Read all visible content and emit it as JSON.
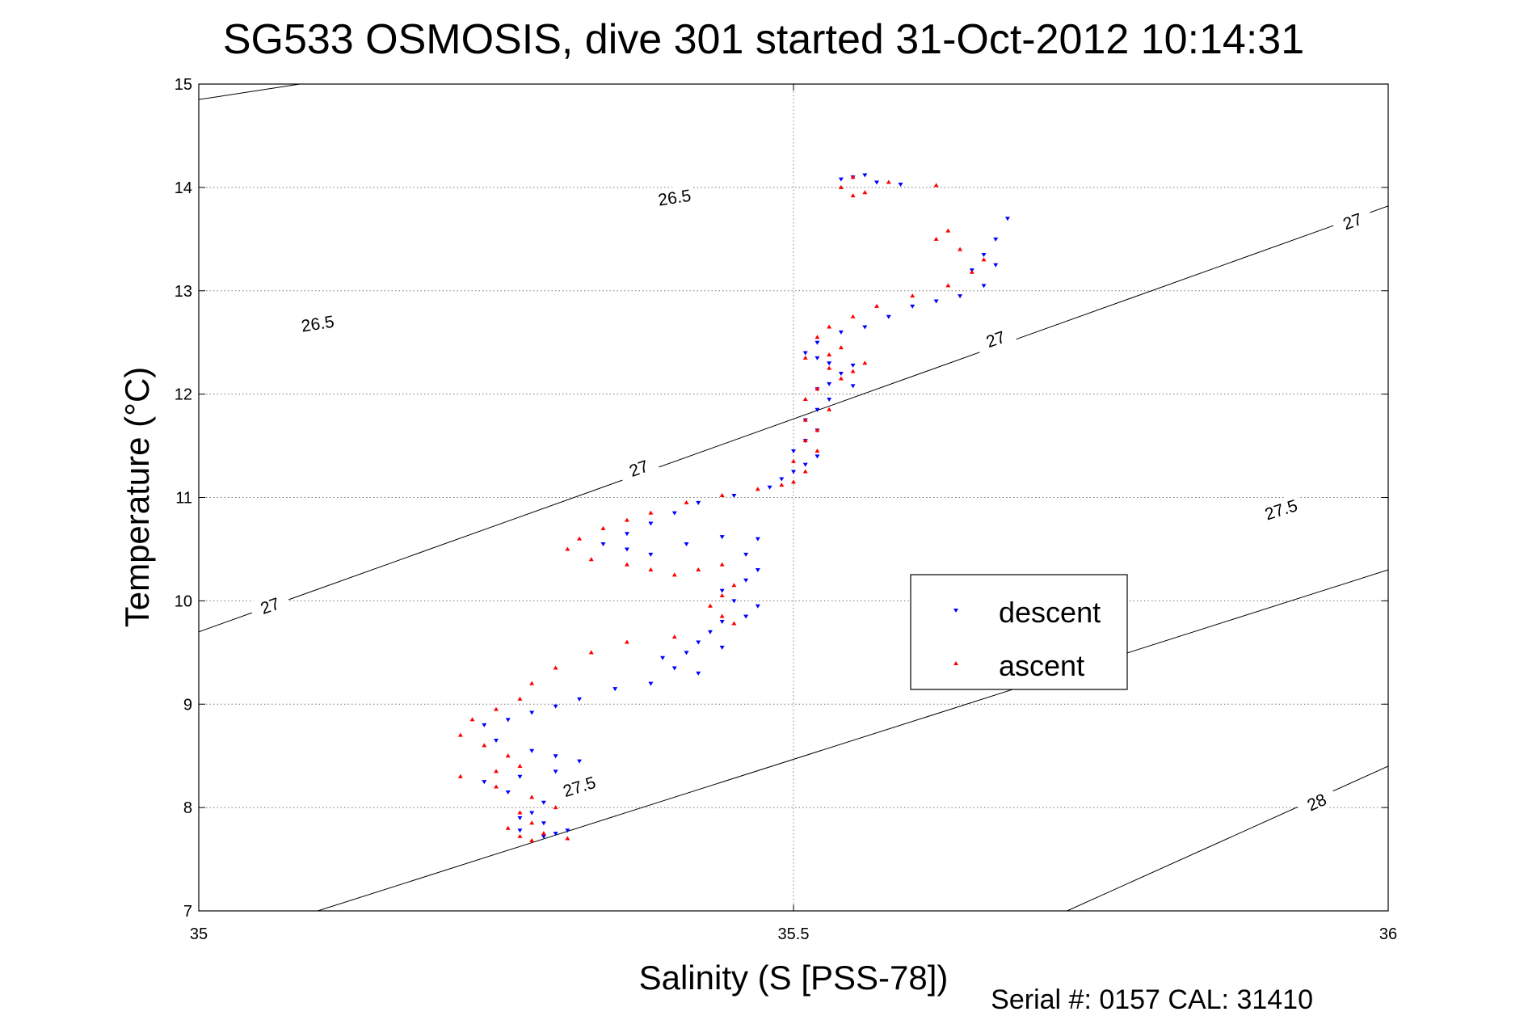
{
  "chart_data": {
    "type": "scatter",
    "title": "SG533 OSMOSIS, dive 301 started 31-Oct-2012 10:14:31",
    "xlabel": "Salinity (S [PSS-78])",
    "ylabel": "Temperature (°C)",
    "footer": "Serial #: 0157  CAL: 31410",
    "xlim": [
      35,
      36
    ],
    "ylim": [
      7,
      15
    ],
    "xticks": [
      "35",
      "35.5",
      "36"
    ],
    "yticks": [
      "7",
      "8",
      "9",
      "10",
      "11",
      "12",
      "13",
      "14",
      "15"
    ],
    "xtick_values": [
      35,
      35.5,
      36
    ],
    "ytick_values": [
      7,
      8,
      9,
      10,
      11,
      12,
      13,
      14,
      15
    ],
    "grid": true,
    "legend_position": "center-right",
    "contours": [
      {
        "level": "26.5",
        "points": [
          [
            35.0,
            14.85
          ],
          [
            35.68,
            16.05
          ]
        ],
        "labels": [
          [
            35.4,
            13.9
          ],
          [
            35.1,
            12.68
          ]
        ]
      },
      {
        "level": "27",
        "points": [
          [
            35.0,
            9.7
          ],
          [
            36.0,
            13.82
          ]
        ],
        "labels": [
          [
            35.37,
            11.28
          ],
          [
            35.06,
            9.95
          ],
          [
            35.67,
            12.53
          ],
          [
            35.97,
            13.67
          ]
        ]
      },
      {
        "level": "27.5",
        "points": [
          [
            35.1,
            7.0
          ],
          [
            36.0,
            10.3
          ]
        ],
        "labels": [
          [
            35.32,
            8.2
          ],
          [
            35.91,
            10.88
          ]
        ]
      },
      {
        "level": "28",
        "points": [
          [
            35.73,
            7.0
          ],
          [
            36.0,
            8.4
          ]
        ],
        "labels": [
          [
            35.94,
            8.05
          ]
        ]
      }
    ],
    "series": [
      {
        "name": "descent",
        "color": "#0000ff",
        "marker": "triangle-down",
        "points": [
          [
            35.68,
            13.7
          ],
          [
            35.67,
            13.5
          ],
          [
            35.66,
            13.35
          ],
          [
            35.65,
            13.2
          ],
          [
            35.67,
            13.25
          ],
          [
            35.66,
            13.05
          ],
          [
            35.64,
            12.95
          ],
          [
            35.62,
            12.9
          ],
          [
            35.6,
            12.85
          ],
          [
            35.58,
            12.75
          ],
          [
            35.56,
            12.65
          ],
          [
            35.54,
            12.6
          ],
          [
            35.52,
            12.5
          ],
          [
            35.51,
            12.4
          ],
          [
            35.52,
            12.35
          ],
          [
            35.53,
            12.3
          ],
          [
            35.55,
            12.28
          ],
          [
            35.54,
            12.2
          ],
          [
            35.53,
            12.1
          ],
          [
            35.52,
            12.05
          ],
          [
            35.55,
            12.08
          ],
          [
            35.53,
            11.95
          ],
          [
            35.52,
            11.85
          ],
          [
            35.51,
            11.75
          ],
          [
            35.52,
            11.65
          ],
          [
            35.51,
            11.55
          ],
          [
            35.5,
            11.45
          ],
          [
            35.52,
            11.4
          ],
          [
            35.51,
            11.32
          ],
          [
            35.5,
            11.25
          ],
          [
            35.49,
            11.18
          ],
          [
            35.48,
            11.1
          ],
          [
            35.45,
            11.02
          ],
          [
            35.42,
            10.95
          ],
          [
            35.4,
            10.85
          ],
          [
            35.38,
            10.75
          ],
          [
            35.36,
            10.65
          ],
          [
            35.34,
            10.55
          ],
          [
            35.36,
            10.5
          ],
          [
            35.38,
            10.45
          ],
          [
            35.41,
            10.55
          ],
          [
            35.44,
            10.62
          ],
          [
            35.47,
            10.6
          ],
          [
            35.46,
            10.45
          ],
          [
            35.47,
            10.3
          ],
          [
            35.46,
            10.2
          ],
          [
            35.44,
            10.1
          ],
          [
            35.45,
            10.0
          ],
          [
            35.47,
            9.95
          ],
          [
            35.46,
            9.85
          ],
          [
            35.44,
            9.8
          ],
          [
            35.43,
            9.7
          ],
          [
            35.42,
            9.6
          ],
          [
            35.44,
            9.55
          ],
          [
            35.41,
            9.5
          ],
          [
            35.39,
            9.45
          ],
          [
            35.4,
            9.35
          ],
          [
            35.42,
            9.3
          ],
          [
            35.38,
            9.2
          ],
          [
            35.35,
            9.15
          ],
          [
            35.32,
            9.05
          ],
          [
            35.3,
            8.98
          ],
          [
            35.28,
            8.92
          ],
          [
            35.26,
            8.85
          ],
          [
            35.24,
            8.8
          ],
          [
            35.25,
            8.65
          ],
          [
            35.28,
            8.55
          ],
          [
            35.3,
            8.5
          ],
          [
            35.32,
            8.45
          ],
          [
            35.3,
            8.35
          ],
          [
            35.27,
            8.3
          ],
          [
            35.24,
            8.25
          ],
          [
            35.26,
            8.15
          ],
          [
            35.29,
            8.05
          ],
          [
            35.28,
            7.95
          ],
          [
            35.27,
            7.9
          ],
          [
            35.29,
            7.85
          ],
          [
            35.27,
            7.78
          ],
          [
            35.29,
            7.72
          ],
          [
            35.3,
            7.75
          ],
          [
            35.31,
            7.78
          ],
          [
            35.55,
            14.1
          ],
          [
            35.56,
            14.12
          ],
          [
            35.54,
            14.08
          ],
          [
            35.57,
            14.05
          ],
          [
            35.59,
            14.03
          ]
        ]
      },
      {
        "name": "ascent",
        "color": "#ff0000",
        "marker": "triangle-up",
        "points": [
          [
            35.62,
            14.02
          ],
          [
            35.58,
            14.05
          ],
          [
            35.55,
            14.1
          ],
          [
            35.54,
            14.0
          ],
          [
            35.56,
            13.95
          ],
          [
            35.55,
            13.92
          ],
          [
            35.63,
            13.58
          ],
          [
            35.62,
            13.5
          ],
          [
            35.64,
            13.4
          ],
          [
            35.66,
            13.3
          ],
          [
            35.65,
            13.18
          ],
          [
            35.63,
            13.05
          ],
          [
            35.6,
            12.95
          ],
          [
            35.57,
            12.85
          ],
          [
            35.55,
            12.75
          ],
          [
            35.53,
            12.65
          ],
          [
            35.52,
            12.55
          ],
          [
            35.54,
            12.45
          ],
          [
            35.53,
            12.38
          ],
          [
            35.51,
            12.35
          ],
          [
            35.53,
            12.25
          ],
          [
            35.56,
            12.3
          ],
          [
            35.55,
            12.22
          ],
          [
            35.54,
            12.15
          ],
          [
            35.52,
            12.05
          ],
          [
            35.51,
            11.95
          ],
          [
            35.53,
            11.85
          ],
          [
            35.51,
            11.75
          ],
          [
            35.52,
            11.65
          ],
          [
            35.51,
            11.55
          ],
          [
            35.52,
            11.45
          ],
          [
            35.5,
            11.35
          ],
          [
            35.51,
            11.25
          ],
          [
            35.5,
            11.15
          ],
          [
            35.49,
            11.12
          ],
          [
            35.47,
            11.08
          ],
          [
            35.44,
            11.02
          ],
          [
            35.41,
            10.95
          ],
          [
            35.38,
            10.85
          ],
          [
            35.36,
            10.78
          ],
          [
            35.34,
            10.7
          ],
          [
            35.32,
            10.6
          ],
          [
            35.31,
            10.5
          ],
          [
            35.33,
            10.4
          ],
          [
            35.36,
            10.35
          ],
          [
            35.38,
            10.3
          ],
          [
            35.4,
            10.25
          ],
          [
            35.42,
            10.3
          ],
          [
            35.44,
            10.35
          ],
          [
            35.45,
            10.15
          ],
          [
            35.44,
            10.05
          ],
          [
            35.43,
            9.95
          ],
          [
            35.44,
            9.85
          ],
          [
            35.45,
            9.78
          ],
          [
            35.4,
            9.65
          ],
          [
            35.36,
            9.6
          ],
          [
            35.33,
            9.5
          ],
          [
            35.3,
            9.35
          ],
          [
            35.28,
            9.2
          ],
          [
            35.27,
            9.05
          ],
          [
            35.25,
            8.95
          ],
          [
            35.23,
            8.85
          ],
          [
            35.22,
            8.7
          ],
          [
            35.24,
            8.6
          ],
          [
            35.26,
            8.5
          ],
          [
            35.27,
            8.4
          ],
          [
            35.25,
            8.35
          ],
          [
            35.22,
            8.3
          ],
          [
            35.25,
            8.2
          ],
          [
            35.28,
            8.1
          ],
          [
            35.3,
            8.0
          ],
          [
            35.27,
            7.95
          ],
          [
            35.28,
            7.85
          ],
          [
            35.26,
            7.8
          ],
          [
            35.29,
            7.75
          ],
          [
            35.31,
            7.7
          ],
          [
            35.28,
            7.68
          ],
          [
            35.27,
            7.72
          ]
        ]
      }
    ]
  }
}
